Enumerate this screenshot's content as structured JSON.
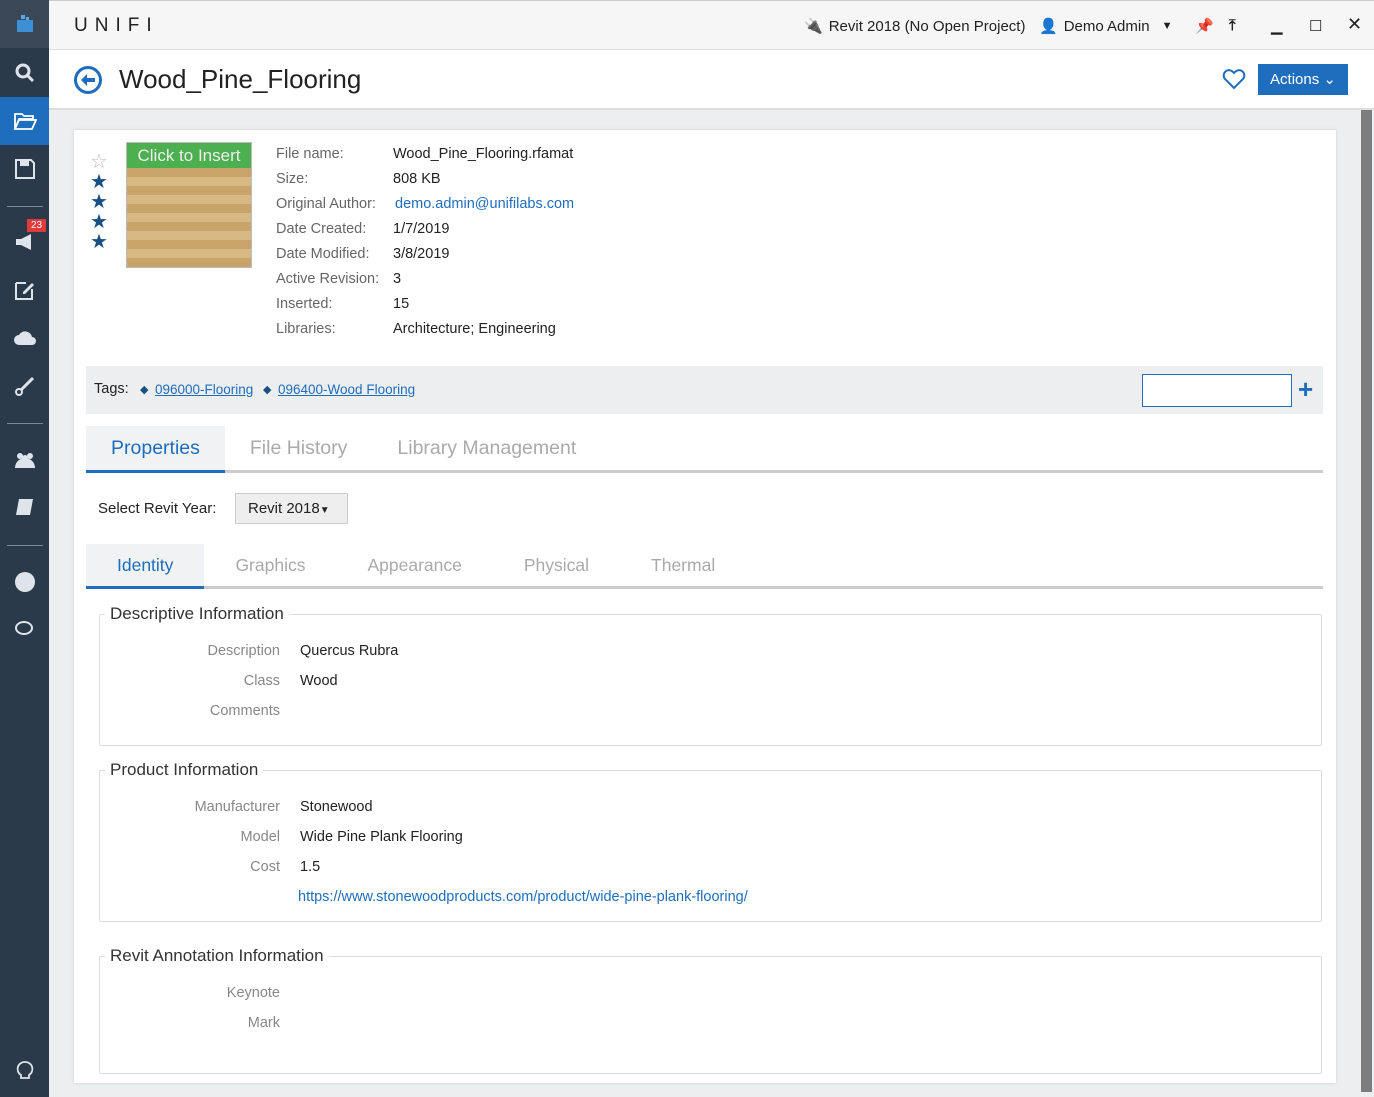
{
  "app": {
    "brand": "UNIFI",
    "revit_status": "Revit 2018 (No Open Project)",
    "user": "Demo Admin"
  },
  "sidebar": {
    "notification_count": "23",
    "items": [
      "logo",
      "search",
      "files",
      "save",
      "announcements",
      "edit",
      "upload",
      "tools",
      "users",
      "library",
      "web",
      "chat",
      "ideas"
    ]
  },
  "header": {
    "title": "Wood_Pine_Flooring",
    "actions_label": "Actions"
  },
  "content": {
    "rating": 4,
    "thumbnail_label": "Click to Insert",
    "meta": [
      {
        "k": "File name:",
        "v": "Wood_Pine_Flooring.rfamat"
      },
      {
        "k": "Size:",
        "v": "808 KB"
      },
      {
        "k": "Original Author:",
        "v": "demo.admin@unifilabs.com",
        "link": true
      },
      {
        "k": "Date Created:",
        "v": "1/7/2019"
      },
      {
        "k": "Date Modified:",
        "v": "3/8/2019"
      },
      {
        "k": "Active Revision:",
        "v": "3"
      },
      {
        "k": "Inserted:",
        "v": "15"
      },
      {
        "k": "Libraries:",
        "v": "Architecture; Engineering"
      }
    ],
    "tags_label": "Tags:",
    "tags": [
      "096000-Flooring",
      "096400-Wood Flooring"
    ],
    "tag_input": "",
    "tabs": [
      "Properties",
      "File History",
      "Library Management"
    ],
    "year_label": "Select Revit Year:",
    "year_value": "Revit 2018",
    "subtabs": [
      "Identity",
      "Graphics",
      "Appearance",
      "Physical",
      "Thermal"
    ],
    "sections": [
      {
        "title": "Descriptive Information",
        "fields": [
          {
            "k": "Description",
            "v": "Quercus Rubra"
          },
          {
            "k": "Class",
            "v": "Wood"
          },
          {
            "k": "Comments",
            "v": ""
          }
        ]
      },
      {
        "title": "Product Information",
        "fields": [
          {
            "k": "Manufacturer",
            "v": "Stonewood"
          },
          {
            "k": "Model",
            "v": "Wide Pine Plank Flooring"
          },
          {
            "k": "Cost",
            "v": "1.5"
          },
          {
            "k": "",
            "v": "https://www.stonewoodproducts.com/product/wide-pine-plank-flooring/",
            "link": true
          }
        ]
      },
      {
        "title": "Revit Annotation Information",
        "fields": [
          {
            "k": "Keynote",
            "v": ""
          },
          {
            "k": "Mark",
            "v": ""
          }
        ]
      }
    ]
  },
  "colors": {
    "accent": "#1f6dbd",
    "sidebar": "#2b3a4a",
    "badge": "#e03a3a"
  }
}
